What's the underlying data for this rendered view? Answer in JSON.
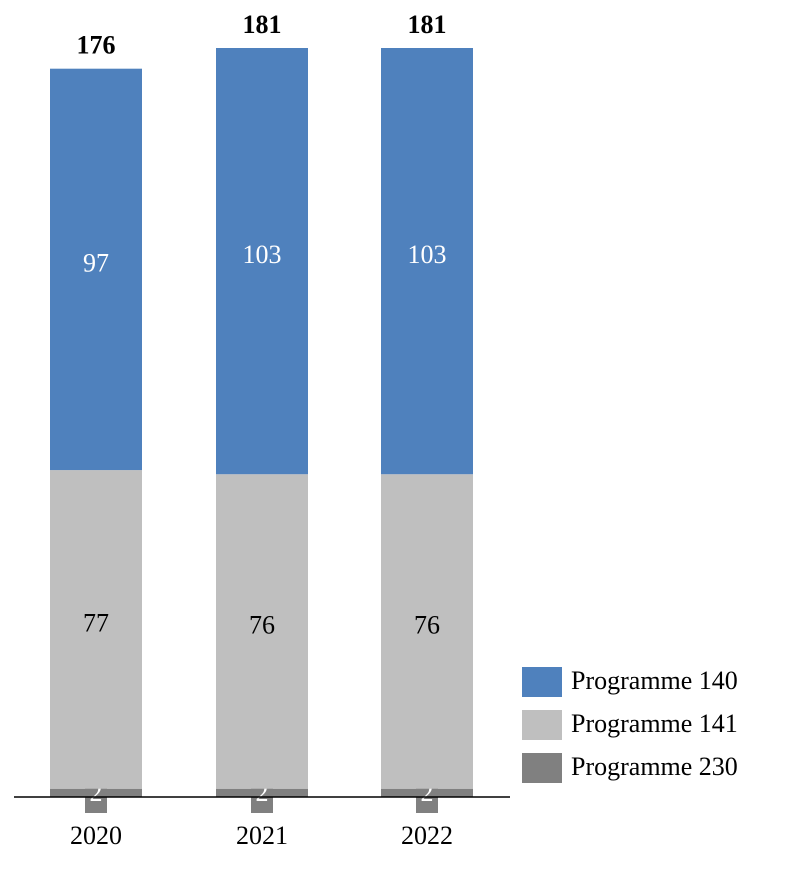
{
  "chart_data": {
    "type": "stacked_bar",
    "categories": [
      "2020",
      "2021",
      "2022"
    ],
    "series": [
      {
        "name": "Programme 140",
        "color": "#4f81bd",
        "values": [
          97,
          103,
          103
        ]
      },
      {
        "name": "Programme 141",
        "color": "#bfbfbf",
        "values": [
          77,
          76,
          76
        ]
      },
      {
        "name": "Programme 230",
        "color": "#808080",
        "values": [
          2,
          2,
          2
        ]
      }
    ],
    "totals": [
      176,
      181,
      181
    ],
    "legend": "bottom-right"
  }
}
